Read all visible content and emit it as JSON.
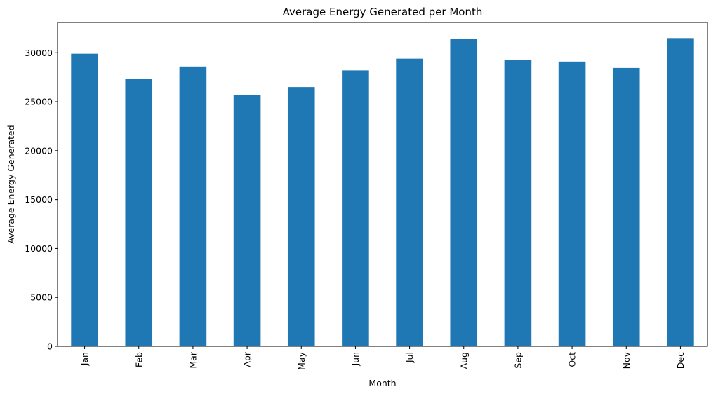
{
  "chart_data": {
    "type": "bar",
    "title": "Average Energy Generated per Month",
    "xlabel": "Month",
    "ylabel": "Average Energy Generated",
    "categories": [
      "Jan",
      "Feb",
      "Mar",
      "Apr",
      "May",
      "Jun",
      "Jul",
      "Aug",
      "Sep",
      "Oct",
      "Nov",
      "Dec"
    ],
    "values": [
      29900,
      27300,
      28600,
      25700,
      26500,
      28200,
      29400,
      31400,
      29300,
      29100,
      28450,
      31500
    ],
    "ylim": [
      0,
      33100
    ],
    "yticks": [
      0,
      5000,
      10000,
      15000,
      20000,
      25000,
      30000
    ],
    "ytick_labels": [
      "0",
      "5000",
      "10000",
      "15000",
      "20000",
      "25000",
      "30000"
    ],
    "grid": false,
    "legend": "none",
    "bar_color": "#1f77b4",
    "axis_color": "#000000"
  }
}
